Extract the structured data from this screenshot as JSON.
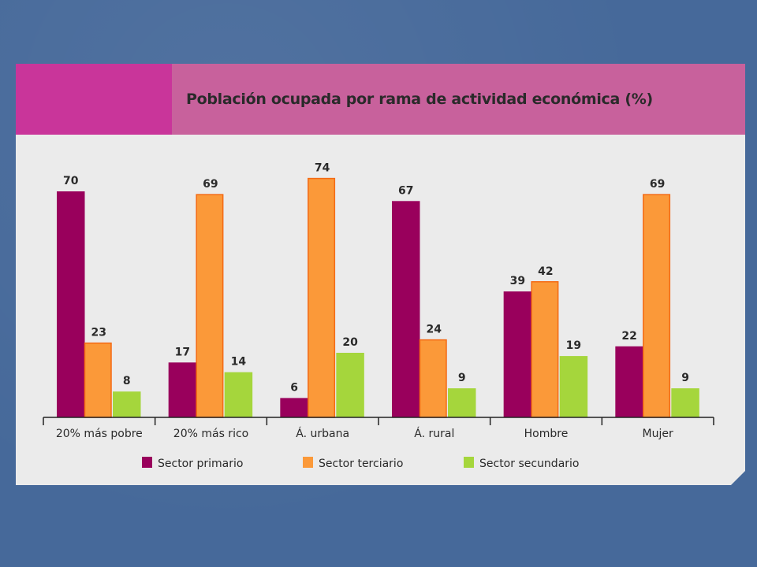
{
  "chart_data": {
    "type": "bar",
    "title": "Población ocupada por rama de actividad económica (%)",
    "categories": [
      "20% más pobre",
      "20% más rico",
      "Á. urbana",
      "Á. rural",
      "Hombre",
      "Mujer"
    ],
    "series": [
      {
        "name": "Sector primario",
        "values": [
          70,
          17,
          6,
          67,
          39,
          22
        ],
        "color": "#99005c"
      },
      {
        "name": "Sector terciario",
        "values": [
          23,
          69,
          74,
          24,
          42,
          69
        ],
        "color": "#fb9939"
      },
      {
        "name": "Sector secundario",
        "values": [
          8,
          14,
          20,
          9,
          19,
          9
        ],
        "color": "#a5d63c"
      }
    ],
    "ylim": [
      0,
      80
    ],
    "grid": false,
    "legend_position": "bottom"
  },
  "colors": {
    "background": "#46699a",
    "panel": "#ebebeb",
    "title_band": "#c8619c",
    "title_accent": "#c9359a",
    "bar_stroke_terciario": "#f46a14"
  }
}
